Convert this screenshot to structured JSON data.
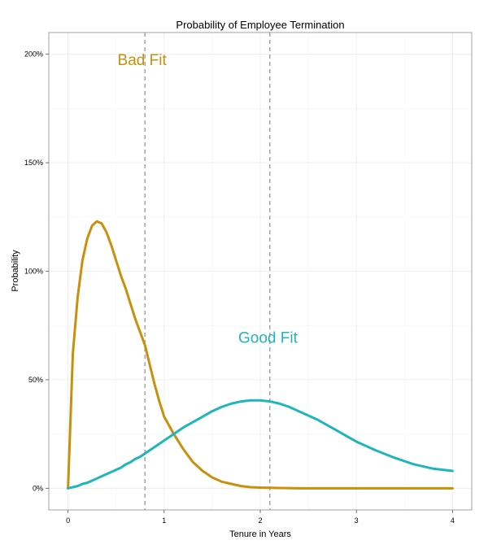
{
  "chart_data": {
    "type": "line",
    "title": "Probability of Employee Termination",
    "xlabel": "Tenure in Years",
    "ylabel": "Probability",
    "xlim": [
      -0.2,
      4.2
    ],
    "ylim": [
      -0.1,
      2.1
    ],
    "x_ticks": [
      0,
      1,
      2,
      3,
      4
    ],
    "x_tick_labels": [
      "0",
      "1",
      "2",
      "3",
      "4"
    ],
    "y_ticks": [
      0,
      0.5,
      1,
      1.5,
      2
    ],
    "y_tick_labels": [
      "0%",
      "50%",
      "100%",
      "150%",
      "200%"
    ],
    "grid": true,
    "vlines": [
      0.8,
      2.1
    ],
    "x": [
      0,
      0.05,
      0.1,
      0.15,
      0.2,
      0.25,
      0.3,
      0.35,
      0.4,
      0.45,
      0.5,
      0.55,
      0.6,
      0.65,
      0.7,
      0.75,
      0.8,
      0.85,
      0.9,
      0.95,
      1.0,
      1.1,
      1.2,
      1.3,
      1.4,
      1.5,
      1.6,
      1.7,
      1.8,
      1.9,
      2.0,
      2.1,
      2.2,
      2.3,
      2.4,
      2.5,
      2.6,
      2.7,
      2.8,
      2.9,
      3.0,
      3.2,
      3.4,
      3.6,
      3.8,
      4.0
    ],
    "series": [
      {
        "color": "#C8900C",
        "values": [
          0.0,
          0.62,
          0.88,
          1.05,
          1.15,
          1.21,
          1.23,
          1.22,
          1.18,
          1.12,
          1.05,
          0.98,
          0.92,
          0.85,
          0.78,
          0.72,
          0.66,
          0.57,
          0.48,
          0.4,
          0.33,
          0.25,
          0.18,
          0.12,
          0.08,
          0.05,
          0.03,
          0.02,
          0.01,
          0.005,
          0.003,
          0.002,
          0.001,
          0.0005,
          0.0,
          0.0,
          0.0,
          0.0,
          0.0,
          0.0,
          0.0,
          0.0,
          0.0,
          0.0,
          0.0,
          0.0
        ]
      },
      {
        "color": "#1EB6BA",
        "values": [
          0.0,
          0.005,
          0.01,
          0.02,
          0.025,
          0.035,
          0.045,
          0.055,
          0.065,
          0.075,
          0.085,
          0.095,
          0.11,
          0.12,
          0.135,
          0.145,
          0.16,
          0.175,
          0.19,
          0.205,
          0.22,
          0.25,
          0.28,
          0.305,
          0.33,
          0.355,
          0.375,
          0.39,
          0.4,
          0.405,
          0.405,
          0.4,
          0.39,
          0.375,
          0.355,
          0.335,
          0.315,
          0.29,
          0.265,
          0.24,
          0.215,
          0.175,
          0.14,
          0.11,
          0.09,
          0.08
        ]
      }
    ],
    "annotations": [
      {
        "text": "Bad Fit",
        "x": 0.77,
        "y": 1.95,
        "color": "#C8900C"
      },
      {
        "text": "Good Fit",
        "x": 2.08,
        "y": 0.67,
        "color": "#1EB6BA"
      }
    ]
  }
}
